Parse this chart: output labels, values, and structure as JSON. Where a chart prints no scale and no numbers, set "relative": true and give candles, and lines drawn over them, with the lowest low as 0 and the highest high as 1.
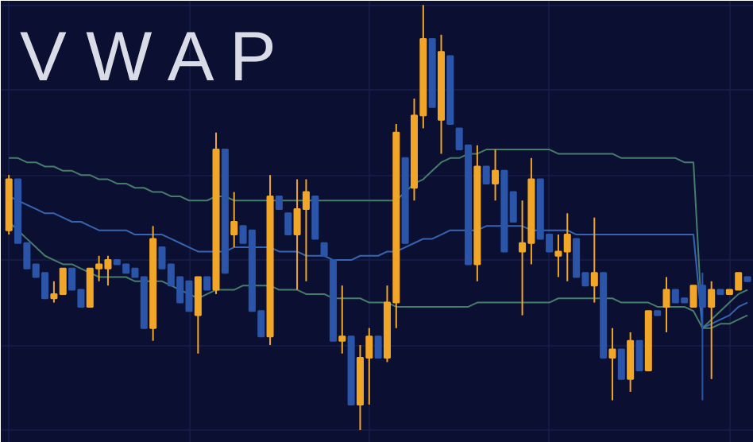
{
  "chart_data": {
    "type": "candlestick",
    "title": "V W A P",
    "relative": true,
    "grid": true,
    "categories": [
      null,
      null,
      null,
      null,
      null,
      null,
      null,
      null,
      null,
      null,
      null,
      null,
      null,
      null,
      null,
      null,
      null,
      null,
      null,
      null,
      null,
      null,
      null,
      null,
      null,
      null,
      null,
      null,
      null,
      null,
      null,
      null,
      null,
      null,
      null,
      null,
      null,
      null,
      null,
      null,
      null,
      null,
      null,
      null,
      null,
      null,
      null,
      null,
      null,
      null,
      null,
      null,
      null,
      null,
      null,
      null,
      null,
      null,
      null,
      null,
      null,
      null,
      null,
      null,
      null,
      null,
      null,
      null,
      null,
      null,
      null,
      null,
      null,
      null,
      null,
      null,
      null,
      null,
      null,
      null,
      null,
      null,
      null
    ],
    "ohlc": [
      [
        0.47,
        0.6,
        0.46,
        0.59
      ],
      [
        0.59,
        0.59,
        0.44,
        0.44
      ],
      [
        0.44,
        0.44,
        0.38,
        0.38
      ],
      [
        0.39,
        0.39,
        0.36,
        0.36
      ],
      [
        0.37,
        0.37,
        0.31,
        0.31
      ],
      [
        0.31,
        0.35,
        0.3,
        0.32
      ],
      [
        0.32,
        0.38,
        0.32,
        0.38
      ],
      [
        0.38,
        0.38,
        0.33,
        0.33
      ],
      [
        0.33,
        0.33,
        0.29,
        0.29
      ],
      [
        0.29,
        0.38,
        0.29,
        0.38
      ],
      [
        0.38,
        0.41,
        0.35,
        0.39
      ],
      [
        0.38,
        0.41,
        0.34,
        0.4
      ],
      [
        0.4,
        0.4,
        0.39,
        0.39
      ],
      [
        0.39,
        0.39,
        0.37,
        0.37
      ],
      [
        0.38,
        0.38,
        0.36,
        0.36
      ],
      [
        0.36,
        0.36,
        0.24,
        0.24
      ],
      [
        0.24,
        0.48,
        0.21,
        0.45
      ],
      [
        0.43,
        0.43,
        0.38,
        0.38
      ],
      [
        0.39,
        0.39,
        0.34,
        0.34
      ],
      [
        0.36,
        0.36,
        0.3,
        0.3
      ],
      [
        0.35,
        0.35,
        0.28,
        0.28
      ],
      [
        0.27,
        0.36,
        0.18,
        0.36
      ],
      [
        0.36,
        0.36,
        0.33,
        0.33
      ],
      [
        0.33,
        0.7,
        0.32,
        0.66
      ],
      [
        0.66,
        0.66,
        0.37,
        0.37
      ],
      [
        0.46,
        0.56,
        0.43,
        0.49
      ],
      [
        0.48,
        0.48,
        0.44,
        0.44
      ],
      [
        0.47,
        0.47,
        0.28,
        0.28
      ],
      [
        0.28,
        0.28,
        0.22,
        0.22
      ],
      [
        0.22,
        0.6,
        0.2,
        0.55
      ],
      [
        0.55,
        0.55,
        0.52,
        0.52
      ],
      [
        0.51,
        0.51,
        0.46,
        0.46
      ],
      [
        0.46,
        0.59,
        0.33,
        0.52
      ],
      [
        0.52,
        0.59,
        0.35,
        0.56
      ],
      [
        0.55,
        0.55,
        0.45,
        0.45
      ],
      [
        0.44,
        0.44,
        0.41,
        0.41
      ],
      [
        0.4,
        0.4,
        0.21,
        0.21
      ],
      [
        0.21,
        0.34,
        0.18,
        0.22
      ],
      [
        0.22,
        0.22,
        0.06,
        0.06
      ],
      [
        0.06,
        0.2,
        0.0,
        0.17
      ],
      [
        0.17,
        0.24,
        0.06,
        0.22
      ],
      [
        0.22,
        0.22,
        0.17,
        0.17
      ],
      [
        0.17,
        0.34,
        0.16,
        0.3
      ],
      [
        0.3,
        0.72,
        0.24,
        0.7
      ],
      [
        0.64,
        0.64,
        0.44,
        0.44
      ],
      [
        0.57,
        0.78,
        0.54,
        0.74
      ],
      [
        0.74,
        1.0,
        0.71,
        0.92
      ],
      [
        0.92,
        0.92,
        0.76,
        0.76
      ],
      [
        0.73,
        0.93,
        0.65,
        0.89
      ],
      [
        0.88,
        0.88,
        0.72,
        0.72
      ],
      [
        0.71,
        0.71,
        0.66,
        0.66
      ],
      [
        0.67,
        0.67,
        0.39,
        0.39
      ],
      [
        0.39,
        0.67,
        0.35,
        0.62
      ],
      [
        0.62,
        0.62,
        0.58,
        0.58
      ],
      [
        0.58,
        0.66,
        0.54,
        0.61
      ],
      [
        0.61,
        0.61,
        0.42,
        0.42
      ],
      [
        0.56,
        0.56,
        0.49,
        0.49
      ],
      [
        0.42,
        0.54,
        0.27,
        0.44
      ],
      [
        0.44,
        0.64,
        0.39,
        0.59
      ],
      [
        0.59,
        0.59,
        0.45,
        0.45
      ],
      [
        0.46,
        0.46,
        0.42,
        0.42
      ],
      [
        0.41,
        0.46,
        0.36,
        0.42
      ],
      [
        0.42,
        0.51,
        0.35,
        0.46
      ],
      [
        0.45,
        0.45,
        0.36,
        0.36
      ],
      [
        0.37,
        0.37,
        0.34,
        0.34
      ],
      [
        0.34,
        0.5,
        0.3,
        0.37
      ],
      [
        0.37,
        0.37,
        0.17,
        0.17
      ],
      [
        0.17,
        0.24,
        0.07,
        0.19
      ],
      [
        0.19,
        0.19,
        0.12,
        0.12
      ],
      [
        0.12,
        0.23,
        0.09,
        0.21
      ],
      [
        0.21,
        0.21,
        0.14,
        0.14
      ],
      [
        0.14,
        0.28,
        0.14,
        0.28
      ],
      [
        0.28,
        0.28,
        0.27,
        0.27
      ],
      [
        0.29,
        0.36,
        0.23,
        0.33
      ],
      [
        0.33,
        0.33,
        0.3,
        0.3
      ],
      [
        0.31,
        0.31,
        0.3,
        0.3
      ],
      [
        0.29,
        0.34,
        0.29,
        0.34
      ],
      [
        0.34,
        0.37,
        0.07,
        0.29
      ],
      [
        0.29,
        0.35,
        0.12,
        0.33
      ],
      [
        0.33,
        0.33,
        0.32,
        0.32
      ],
      [
        0.32,
        0.33,
        0.32,
        0.33
      ],
      [
        0.33,
        0.37,
        0.33,
        0.37
      ],
      [
        0.36,
        0.36,
        0.35,
        0.35
      ]
    ],
    "colors": [
      "#f2a628",
      "#2a55a8",
      "#2a55a8",
      "#2a55a8",
      "#2a55a8",
      "#f2a628",
      "#f2a628",
      "#2a55a8",
      "#2a55a8",
      "#f2a628",
      "#f2a628",
      "#f2a628",
      "#2a55a8",
      "#2a55a8",
      "#2a55a8",
      "#2a55a8",
      "#f2a628",
      "#2a55a8",
      "#2a55a8",
      "#2a55a8",
      "#2a55a8",
      "#f2a628",
      "#2a55a8",
      "#f2a628",
      "#2a55a8",
      "#f2a628",
      "#2a55a8",
      "#2a55a8",
      "#2a55a8",
      "#f2a628",
      "#2a55a8",
      "#2a55a8",
      "#f2a628",
      "#f2a628",
      "#2a55a8",
      "#2a55a8",
      "#2a55a8",
      "#f2a628",
      "#2a55a8",
      "#f2a628",
      "#f2a628",
      "#2a55a8",
      "#f2a628",
      "#f2a628",
      "#2a55a8",
      "#f2a628",
      "#f2a628",
      "#2a55a8",
      "#f2a628",
      "#2a55a8",
      "#2a55a8",
      "#2a55a8",
      "#f2a628",
      "#2a55a8",
      "#f2a628",
      "#2a55a8",
      "#2a55a8",
      "#f2a628",
      "#f2a628",
      "#2a55a8",
      "#2a55a8",
      "#f2a628",
      "#f2a628",
      "#2a55a8",
      "#2a55a8",
      "#f2a628",
      "#2a55a8",
      "#f2a628",
      "#2a55a8",
      "#f2a628",
      "#2a55a8",
      "#f2a628",
      "#2a55a8",
      "#f2a628",
      "#2a55a8",
      "#2a55a8",
      "#f2a628",
      "#2a55a8",
      "#f2a628",
      "#2a55a8",
      "#f2a628",
      "#f2a628",
      "#2a55a8"
    ],
    "series": [
      {
        "type": "line",
        "color": "#4d8a6e",
        "values": [
          0.64,
          0.64,
          0.63,
          0.63,
          0.62,
          0.62,
          0.61,
          0.61,
          0.6,
          0.6,
          0.59,
          0.59,
          0.58,
          0.58,
          0.57,
          0.57,
          0.56,
          0.56,
          0.55,
          0.55,
          0.54,
          0.54,
          0.54,
          0.55,
          0.55,
          0.54,
          0.54,
          0.54,
          0.54,
          0.54,
          0.54,
          0.54,
          0.54,
          0.54,
          0.54,
          0.54,
          0.54,
          0.54,
          0.54,
          0.54,
          0.54,
          0.54,
          0.54,
          0.54,
          0.56,
          0.58,
          0.59,
          0.61,
          0.63,
          0.64,
          0.64,
          0.65,
          0.65,
          0.66,
          0.66,
          0.66,
          0.66,
          0.66,
          0.66,
          0.66,
          0.66,
          0.65,
          0.65,
          0.65,
          0.65,
          0.65,
          0.65,
          0.65,
          0.64,
          0.64,
          0.64,
          0.64,
          0.64,
          0.64,
          0.64,
          0.63,
          0.63,
          0.24,
          0.26,
          0.28,
          0.3,
          0.32,
          0.33
        ]
      },
      {
        "type": "line",
        "color": "#3a6fc0",
        "values": [
          0.55,
          0.54,
          0.53,
          0.52,
          0.51,
          0.51,
          0.5,
          0.49,
          0.49,
          0.48,
          0.47,
          0.47,
          0.47,
          0.47,
          0.46,
          0.46,
          0.46,
          0.46,
          0.45,
          0.44,
          0.43,
          0.42,
          0.42,
          0.42,
          0.42,
          0.43,
          0.43,
          0.43,
          0.43,
          0.43,
          0.42,
          0.42,
          0.42,
          0.41,
          0.41,
          0.41,
          0.4,
          0.4,
          0.4,
          0.41,
          0.41,
          0.41,
          0.42,
          0.42,
          0.43,
          0.44,
          0.45,
          0.45,
          0.46,
          0.47,
          0.47,
          0.47,
          0.47,
          0.48,
          0.48,
          0.48,
          0.48,
          0.48,
          0.47,
          0.47,
          0.47,
          0.47,
          0.47,
          0.46,
          0.46,
          0.46,
          0.46,
          0.46,
          0.46,
          0.46,
          0.46,
          0.46,
          0.46,
          0.46,
          0.46,
          0.46,
          0.46,
          0.24,
          0.25,
          0.26,
          0.27,
          0.29,
          0.3
        ]
      },
      {
        "type": "line",
        "color": "#4d8a6e",
        "values": [
          0.49,
          0.47,
          0.45,
          0.43,
          0.41,
          0.4,
          0.39,
          0.39,
          0.38,
          0.37,
          0.36,
          0.36,
          0.36,
          0.36,
          0.35,
          0.35,
          0.35,
          0.35,
          0.34,
          0.33,
          0.32,
          0.31,
          0.32,
          0.33,
          0.33,
          0.33,
          0.34,
          0.34,
          0.34,
          0.34,
          0.33,
          0.33,
          0.33,
          0.32,
          0.32,
          0.32,
          0.31,
          0.31,
          0.31,
          0.31,
          0.3,
          0.3,
          0.3,
          0.29,
          0.29,
          0.29,
          0.29,
          0.29,
          0.29,
          0.29,
          0.29,
          0.29,
          0.3,
          0.3,
          0.3,
          0.3,
          0.3,
          0.3,
          0.3,
          0.3,
          0.3,
          0.31,
          0.31,
          0.31,
          0.31,
          0.31,
          0.31,
          0.31,
          0.3,
          0.3,
          0.3,
          0.3,
          0.29,
          0.29,
          0.29,
          0.29,
          0.28,
          0.24,
          0.24,
          0.25,
          0.25,
          0.26,
          0.27
        ]
      }
    ]
  }
}
